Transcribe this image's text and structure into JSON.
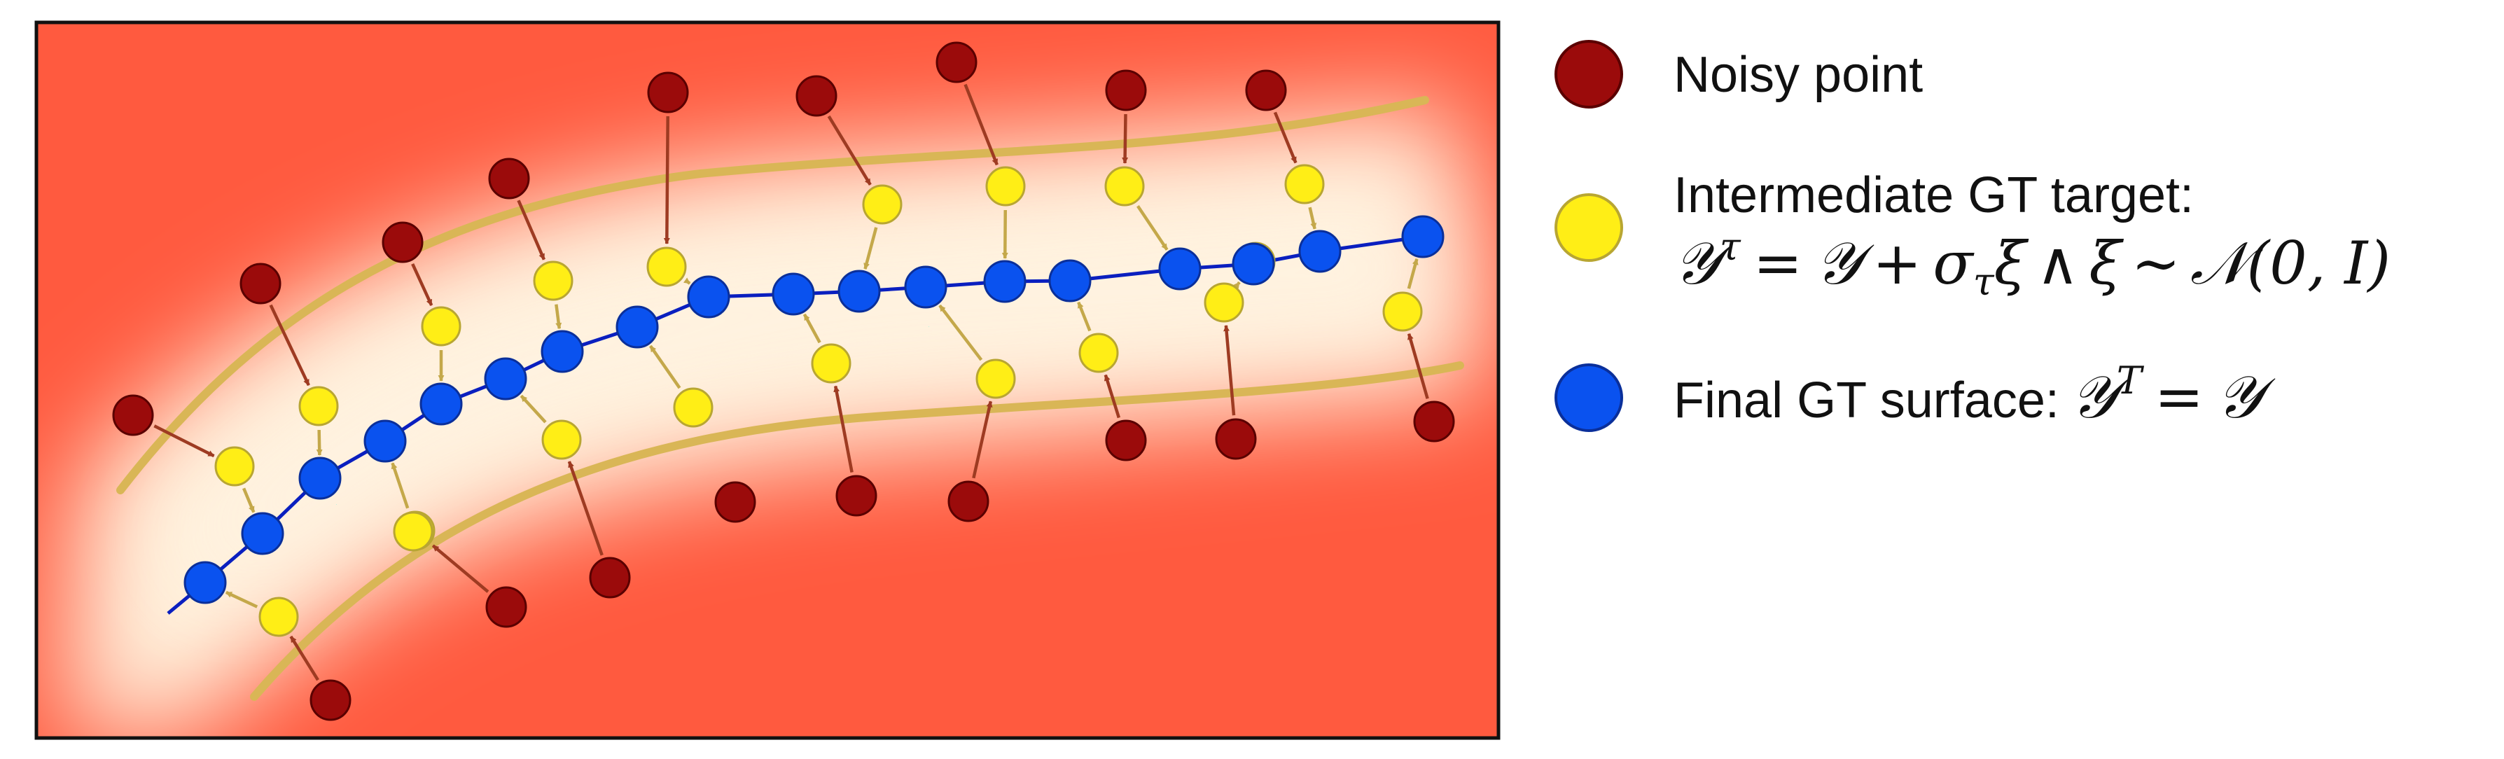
{
  "colors": {
    "background_far": "#ff5a3f",
    "background_near": "#fff1dc",
    "band_line": "#d9b656",
    "noisy_fill": "#9b0b0b",
    "noisy_stroke": "#5a0000",
    "noisy_arrow": "#9e3b22",
    "intermediate_fill": "#ffee16",
    "intermediate_stroke": "#b8a632",
    "intermediate_arrow": "#c4a84a",
    "final_fill": "#0a52ef",
    "final_stroke": "#0a2f9a",
    "final_line": "#0a1fbf",
    "frame": "#111111"
  },
  "legend": {
    "noisy": {
      "label": "Noisy point",
      "icon": "dark-red-circle"
    },
    "intermediate": {
      "label": "Intermediate GT target:",
      "icon": "yellow-circle",
      "formula_lhs_symbol": "𝒴",
      "formula_lhs_superscript": "τ",
      "formula_equals": "=",
      "formula_rhs_symbol": "𝒴",
      "formula_plus": "+",
      "formula_sigma": "σ",
      "formula_sigma_subscript": "τ",
      "formula_xi": "ξ",
      "formula_wedge": "∧",
      "formula_xi2": "ξ",
      "formula_sim": "∼",
      "formula_normal": "𝒩",
      "formula_args": "(0, I)"
    },
    "final": {
      "label": "Final GT surface:",
      "icon": "blue-circle",
      "formula_lhs_symbol": "𝒴",
      "formula_lhs_superscript": "T",
      "formula_equals": "=",
      "formula_rhs_symbol": "𝒴"
    }
  }
}
